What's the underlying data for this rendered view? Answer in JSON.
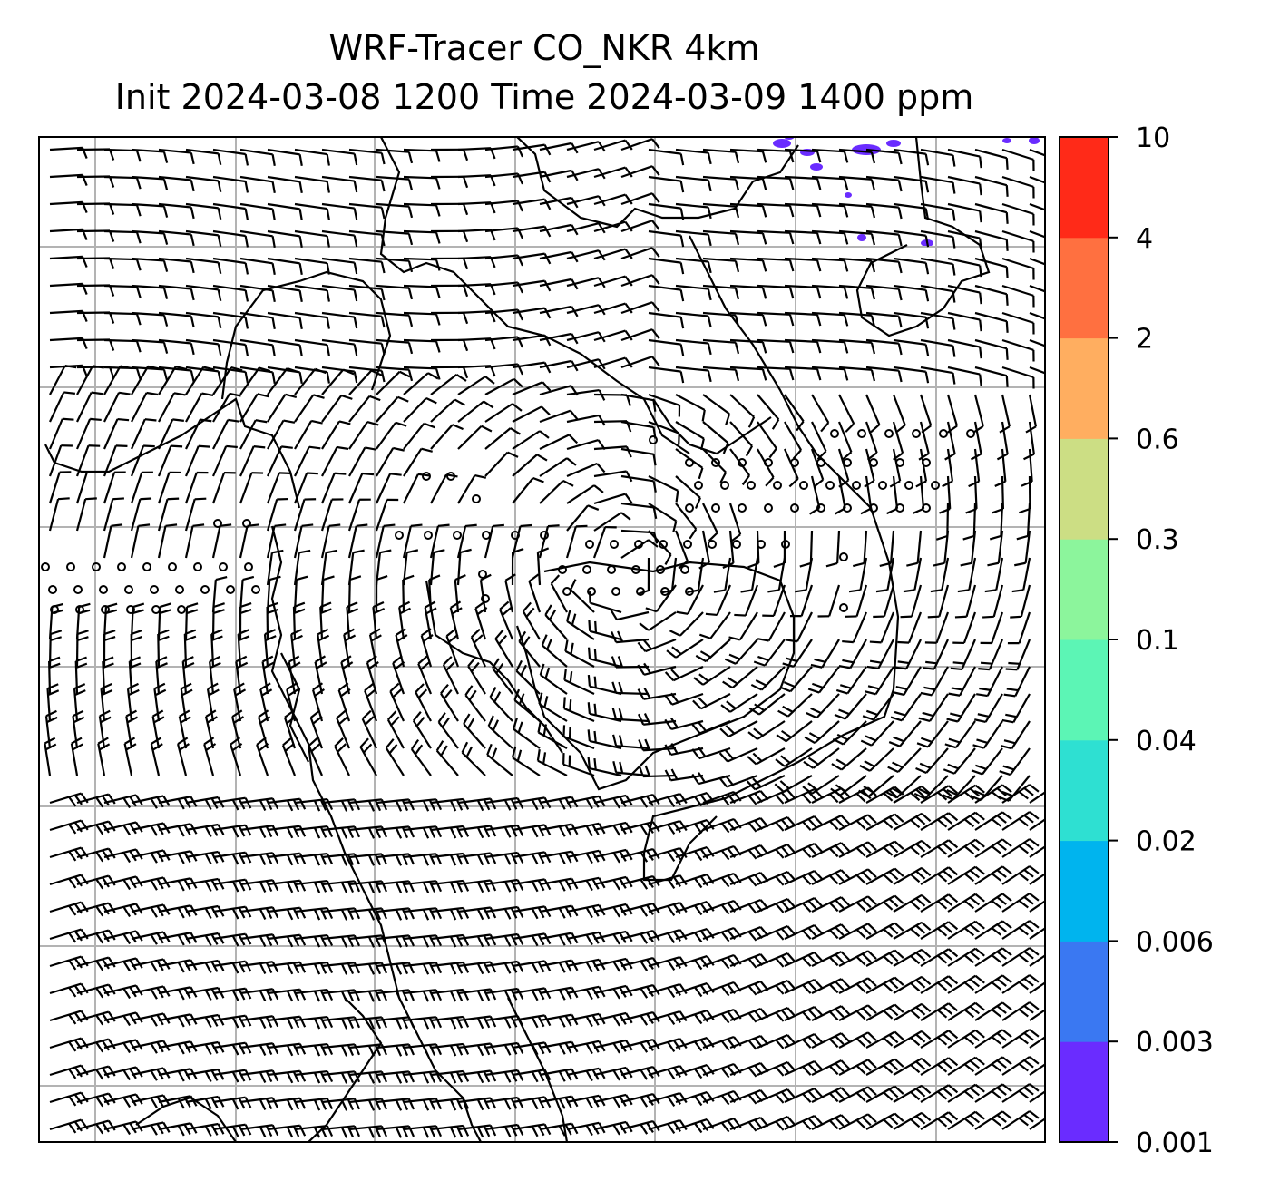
{
  "title": {
    "line1": "WRF-Tracer CO_NKR 4km",
    "line2": "Init 2024-03-08 1200 Time 2024-03-09 1400 ppm"
  },
  "colorbar": {
    "levels": [
      "0.001",
      "0.003",
      "0.006",
      "0.02",
      "0.04",
      "0.1",
      "0.3",
      "0.6",
      "2",
      "4",
      "10"
    ],
    "colors": [
      "#6a2cff",
      "#3a78f2",
      "#00b4ee",
      "#2ee0d2",
      "#5cf5b5",
      "#8cf59c",
      "#ccde84",
      "#ffae60",
      "#ff7040",
      "#ff2a18"
    ]
  },
  "map": {
    "gridline_color": "#b3b3b3",
    "barb_color": "#000000",
    "coastline_color": "#000000"
  }
}
